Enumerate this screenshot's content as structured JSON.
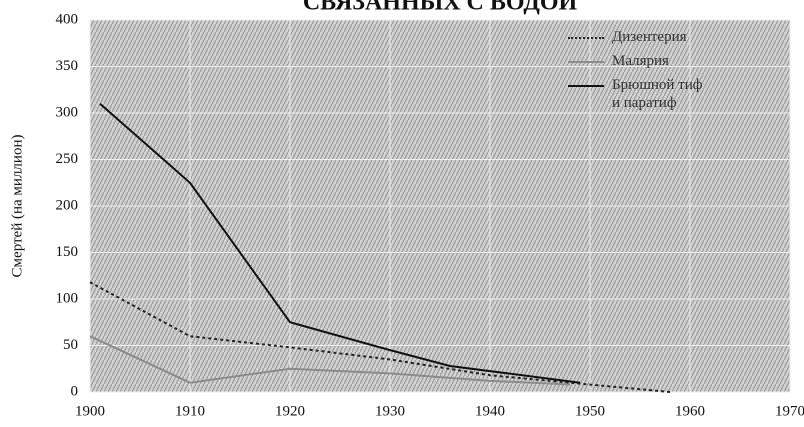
{
  "chart_data": {
    "type": "line",
    "title": "СВЯЗАННЫХ С ВОДОЙ",
    "ylabel": "Смертей (на миллион)",
    "xlim": [
      1900,
      1970
    ],
    "xticks": [
      1900,
      1910,
      1920,
      1930,
      1940,
      1950,
      1960,
      1970
    ],
    "ylim": [
      0,
      400
    ],
    "yticks": [
      0,
      50,
      100,
      150,
      200,
      250,
      300,
      350,
      400
    ],
    "grid": true,
    "series": [
      {
        "name": "Дизентерия",
        "color": "#222222",
        "dash": "dotted",
        "x": [
          1900,
          1910,
          1920,
          1930,
          1940,
          1950,
          1958
        ],
        "values": [
          118,
          60,
          48,
          35,
          18,
          8,
          0
        ]
      },
      {
        "name": "Малярия",
        "color": "#8c8c8c",
        "dash": "solid",
        "x": [
          1900,
          1910,
          1920,
          1930,
          1940,
          1948
        ],
        "values": [
          60,
          10,
          25,
          20,
          12,
          8
        ]
      },
      {
        "name": "Брюшной тиф и паратиф",
        "color": "#111111",
        "dash": "solid",
        "x": [
          1901,
          1910,
          1920,
          1930,
          1936,
          1949
        ],
        "values": [
          310,
          225,
          75,
          45,
          28,
          10
        ]
      }
    ]
  }
}
